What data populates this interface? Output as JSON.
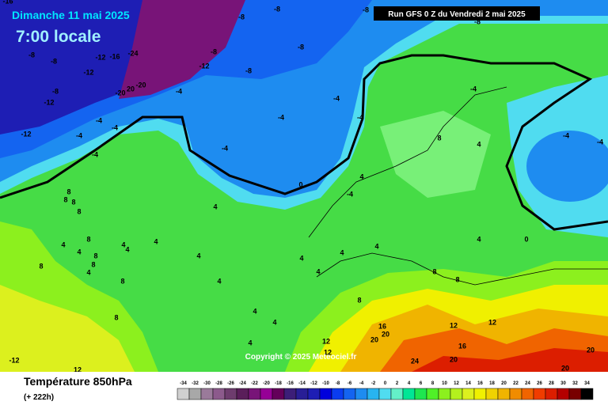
{
  "header": {
    "date": "Dimanche 11 mai 2025",
    "time": "7:00 locale",
    "run": "Run GFS 0 Z du Vendredi 2 mai 2025"
  },
  "footer": {
    "title": "Température 850hPa",
    "subtitle": "(+ 222h)",
    "copyright": "Copyright © 2025 Meteociel.fr"
  },
  "scale": {
    "labels": [
      -34,
      -32,
      -30,
      -28,
      -26,
      -24,
      -22,
      -20,
      -18,
      -16,
      -14,
      -12,
      -10,
      -8,
      -6,
      -4,
      -2,
      0,
      2,
      4,
      6,
      8,
      10,
      12,
      14,
      16,
      18,
      20,
      22,
      24,
      26,
      28,
      30,
      32,
      34
    ],
    "colors": [
      "#d0d0d0",
      "#a8a8a8",
      "#9a7a9a",
      "#8c5a8c",
      "#6e3c6e",
      "#5a1e5a",
      "#781478",
      "#960096",
      "#64005a",
      "#3c1e78",
      "#281e96",
      "#1e1eb4",
      "#0000dc",
      "#0a3cf0",
      "#1464f0",
      "#1e8cf0",
      "#28b4f0",
      "#50dcf0",
      "#64f0c8",
      "#00e696",
      "#1ee650",
      "#50f028",
      "#8cf01e",
      "#b4f01e",
      "#dcf01e",
      "#f0f000",
      "#f0d200",
      "#f0b400",
      "#f08c00",
      "#f06400",
      "#f03c00",
      "#dc1e00",
      "#b40000",
      "#780000",
      "#000000"
    ]
  },
  "map": {
    "labels": [
      "-16",
      "-8",
      "-8",
      "-8",
      "-8",
      "-8",
      "-8",
      "-12",
      "-16",
      "-24",
      "-8",
      "-8",
      "-12",
      "-12",
      "-8",
      "-20",
      "20",
      "-20",
      "-8",
      "-12",
      "-4",
      "-4",
      "-4",
      "-4",
      "-4",
      "-4",
      "-4",
      "-12",
      "-4",
      "-4",
      "-4",
      "8",
      "4",
      "-4",
      "-4",
      "0",
      "4",
      "-4",
      "8",
      "8",
      "8",
      "8",
      "4",
      "4",
      "4",
      "4",
      "4",
      "4",
      "8",
      "8",
      "8",
      "4",
      "4",
      "4",
      "4",
      "4",
      "4",
      "0",
      "8",
      "8",
      "8",
      "4",
      "8",
      "4",
      "8",
      "4",
      "8",
      "16",
      "20",
      "20",
      "12",
      "12",
      "4",
      "4",
      "12",
      "12",
      "16",
      "20",
      "-12",
      "12",
      "24",
      "20",
      "20"
    ]
  }
}
